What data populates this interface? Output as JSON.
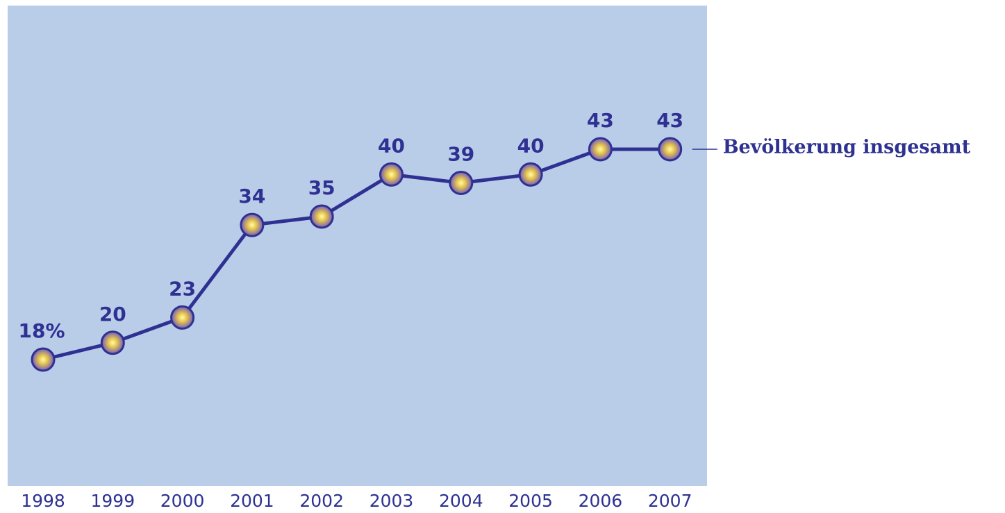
{
  "chart_data": {
    "type": "line",
    "categories": [
      "1998",
      "1999",
      "2000",
      "2001",
      "2002",
      "2003",
      "2004",
      "2005",
      "2006",
      "2007"
    ],
    "series": [
      {
        "name": "Bevölkerung insgesamt",
        "color": "#2e3192",
        "values": [
          18,
          20,
          23,
          34,
          35,
          40,
          39,
          40,
          43,
          43
        ],
        "value_labels": [
          "18%",
          "20",
          "23",
          "34",
          "35",
          "40",
          "39",
          "40",
          "43",
          "43"
        ]
      }
    ]
  }
}
